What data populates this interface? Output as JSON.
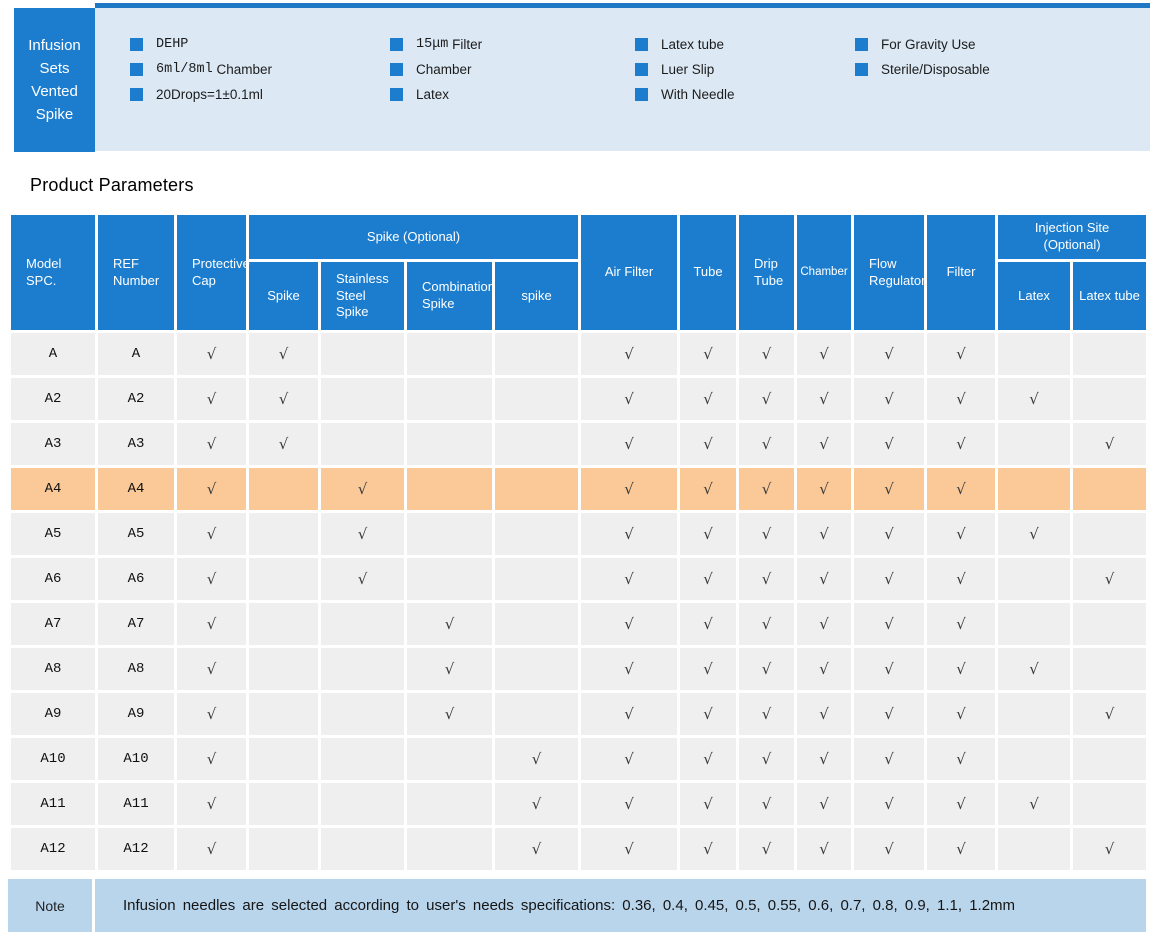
{
  "colors": {
    "accent": "#1c7dce",
    "band_bg": "#dce9f5",
    "band_border": "#1f78c4",
    "row_bg": "#efefef",
    "highlight_bg": "#fbc998",
    "note_bg": "#b9d5ec",
    "check": "#3a3a3a"
  },
  "banner": {
    "title_lines": [
      "Infusion",
      "Sets",
      "Vented",
      "Spike"
    ],
    "feature_columns": [
      {
        "items": [
          {
            "pre": "DEHP",
            "post": ""
          },
          {
            "pre": "6ml/8ml",
            "post": " Chamber"
          },
          {
            "pre": "",
            "post": "20Drops=1±0.1ml"
          }
        ]
      },
      {
        "items": [
          {
            "pre": "15μm",
            "post": " Filter"
          },
          {
            "pre": "",
            "post": "Chamber"
          },
          {
            "pre": "",
            "post": "Latex"
          }
        ]
      },
      {
        "items": [
          {
            "pre": "",
            "post": "Latex tube"
          },
          {
            "pre": "",
            "post": "Luer Slip"
          },
          {
            "pre": "",
            "post": "With Needle"
          }
        ]
      },
      {
        "items": [
          {
            "pre": "",
            "post": "For Gravity Use"
          },
          {
            "pre": "",
            "post": "Sterile/Disposable"
          }
        ]
      }
    ]
  },
  "section_title": "Product Parameters",
  "table": {
    "check_glyph": "√",
    "headers": {
      "model": "Model\nSPC.",
      "ref": "REF\nNumber",
      "protective_cap": "Protective\nCap",
      "spike_group": "Spike (Optional)",
      "spike": "Spike",
      "stainless": "Stainless\nSteel\nSpike",
      "combination": "Combination\nSpike",
      "spike_lower": "spike",
      "air_filter": "Air Filter",
      "tube": "Tube",
      "drip_tube": "Drip\nTube",
      "chamber": "Chamber",
      "flow_regulator": "Flow\nRegulator",
      "filter": "Filter",
      "injection_group": "Injection Site\n(Optional)",
      "latex": "Latex",
      "latex_tube": "Latex tube"
    },
    "check_columns": [
      "protective_cap",
      "spike",
      "stainless_steel_spike",
      "combination_spike",
      "spike_lower",
      "air_filter",
      "tube",
      "drip_tube",
      "chamber",
      "flow_regulator",
      "filter",
      "latex",
      "latex_tube"
    ],
    "rows": [
      {
        "model": "A",
        "ref": "A",
        "highlight": false,
        "checks": [
          1,
          1,
          0,
          0,
          0,
          1,
          1,
          1,
          1,
          1,
          1,
          0,
          0
        ]
      },
      {
        "model": "A2",
        "ref": "A2",
        "highlight": false,
        "checks": [
          1,
          1,
          0,
          0,
          0,
          1,
          1,
          1,
          1,
          1,
          1,
          1,
          0
        ]
      },
      {
        "model": "A3",
        "ref": "A3",
        "highlight": false,
        "checks": [
          1,
          1,
          0,
          0,
          0,
          1,
          1,
          1,
          1,
          1,
          1,
          0,
          1
        ]
      },
      {
        "model": "A4",
        "ref": "A4",
        "highlight": true,
        "checks": [
          1,
          0,
          1,
          0,
          0,
          1,
          1,
          1,
          1,
          1,
          1,
          0,
          0
        ]
      },
      {
        "model": "A5",
        "ref": "A5",
        "highlight": false,
        "checks": [
          1,
          0,
          1,
          0,
          0,
          1,
          1,
          1,
          1,
          1,
          1,
          1,
          0
        ]
      },
      {
        "model": "A6",
        "ref": "A6",
        "highlight": false,
        "checks": [
          1,
          0,
          1,
          0,
          0,
          1,
          1,
          1,
          1,
          1,
          1,
          0,
          1
        ]
      },
      {
        "model": "A7",
        "ref": "A7",
        "highlight": false,
        "checks": [
          1,
          0,
          0,
          1,
          0,
          1,
          1,
          1,
          1,
          1,
          1,
          0,
          0
        ]
      },
      {
        "model": "A8",
        "ref": "A8",
        "highlight": false,
        "checks": [
          1,
          0,
          0,
          1,
          0,
          1,
          1,
          1,
          1,
          1,
          1,
          1,
          0
        ]
      },
      {
        "model": "A9",
        "ref": "A9",
        "highlight": false,
        "checks": [
          1,
          0,
          0,
          1,
          0,
          1,
          1,
          1,
          1,
          1,
          1,
          0,
          1
        ]
      },
      {
        "model": "A10",
        "ref": "A10",
        "highlight": false,
        "checks": [
          1,
          0,
          0,
          0,
          1,
          1,
          1,
          1,
          1,
          1,
          1,
          0,
          0
        ]
      },
      {
        "model": "A11",
        "ref": "A11",
        "highlight": false,
        "checks": [
          1,
          0,
          0,
          0,
          1,
          1,
          1,
          1,
          1,
          1,
          1,
          1,
          0
        ]
      },
      {
        "model": "A12",
        "ref": "A12",
        "highlight": false,
        "checks": [
          1,
          0,
          0,
          0,
          1,
          1,
          1,
          1,
          1,
          1,
          1,
          0,
          1
        ]
      }
    ]
  },
  "note": {
    "label": "Note",
    "text": "Infusion needles are selected according to user's needs specifications: 0.36, 0.4, 0.45, 0.5, 0.55, 0.6, 0.7, 0.8, 0.9, 1.1, 1.2mm",
    "sizes_mm": [
      0.36,
      0.4,
      0.45,
      0.5,
      0.55,
      0.6,
      0.7,
      0.8,
      0.9,
      1.1,
      1.2
    ]
  }
}
